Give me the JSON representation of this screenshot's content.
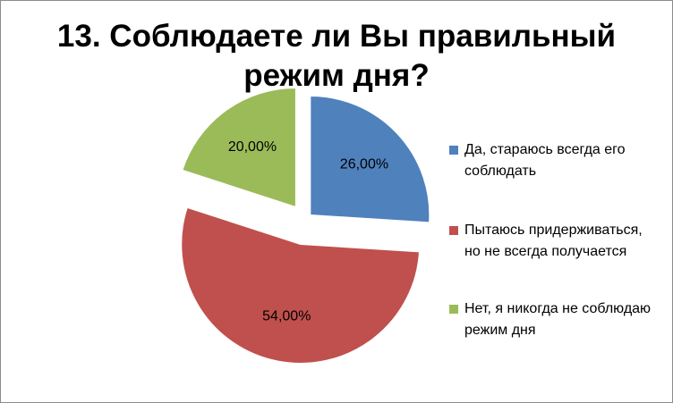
{
  "chart_data": {
    "type": "pie",
    "title": "13. Соблюдаете ли Вы правильный режим дня?",
    "categories": [
      "Да, стараюсь всегда его соблюдать",
      "Пытаюсь придерживаться, но не всегда получается",
      "Нет, я никогда не соблюдаю режим дня"
    ],
    "values": [
      26,
      54,
      20
    ],
    "value_labels": [
      "26,00%",
      "54,00%",
      "20,00%"
    ],
    "colors": [
      "#4f81bd",
      "#c0504d",
      "#9bbb59"
    ],
    "legend": "right"
  }
}
